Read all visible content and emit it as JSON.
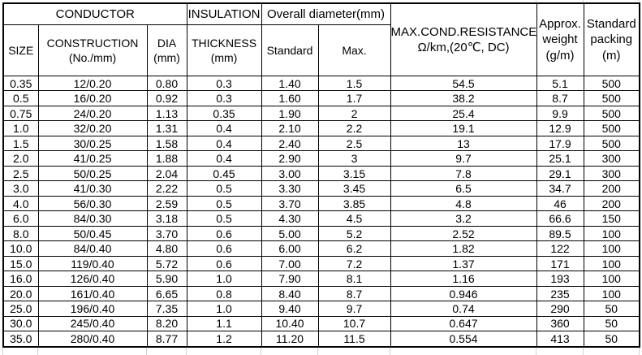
{
  "table": {
    "columns": [
      "size",
      "construction",
      "dia",
      "thickness",
      "overall-standard",
      "overall-max",
      "resistance",
      "weight",
      "packing"
    ],
    "header": {
      "group_conductor": "CONDUCTOR",
      "group_insulation": "INSULATION",
      "group_overall_diameter": "Overall diameter(mm)",
      "col_size": "SIZE",
      "col_construction": "CONSTRUCTION\n(No./mm)",
      "col_dia": "DIA\n(mm)",
      "col_thickness": "THICKNESS\n(mm)",
      "col_standard": "Standard",
      "col_max": "Max.",
      "col_resistance": "MAX.COND.RESISTANCE\nΩ/km,(20℃, DC)",
      "col_weight": "Approx.\nweight\n(g/m)",
      "col_packing": "Standard\npacking\n(m)"
    },
    "rows": [
      [
        "0.35",
        "12/0.20",
        "0.80",
        "0.3",
        "1.40",
        "1.5",
        "54.5",
        "5.1",
        "500"
      ],
      [
        "0.5",
        "16/0.20",
        "0.92",
        "0.3",
        "1.60",
        "1.7",
        "38.2",
        "8.7",
        "500"
      ],
      [
        "0.75",
        "24/0.20",
        "1.13",
        "0.35",
        "1.90",
        "2",
        "25.4",
        "9.9",
        "500"
      ],
      [
        "1.0",
        "32/0.20",
        "1.31",
        "0.4",
        "2.10",
        "2.2",
        "19.1",
        "12.9",
        "500"
      ],
      [
        "1.5",
        "30/0.25",
        "1.58",
        "0.4",
        "2.40",
        "2.5",
        "13",
        "17.9",
        "500"
      ],
      [
        "2.0",
        "41/0.25",
        "1.88",
        "0.4",
        "2.90",
        "3",
        "9.7",
        "25.1",
        "300"
      ],
      [
        "2.5",
        "50/0.25",
        "2.04",
        "0.45",
        "3.00",
        "3.15",
        "7.8",
        "29.1",
        "300"
      ],
      [
        "3.0",
        "41/0.30",
        "2.22",
        "0.5",
        "3.30",
        "3.45",
        "6.5",
        "34.7",
        "200"
      ],
      [
        "4.0",
        "56/0.30",
        "2.59",
        "0.5",
        "3.70",
        "3.85",
        "4.8",
        "46",
        "200"
      ],
      [
        "6.0",
        "84/0.30",
        "3.18",
        "0.5",
        "4.30",
        "4.5",
        "3.2",
        "66.6",
        "150"
      ],
      [
        "8.0",
        "50/0.45",
        "3.70",
        "0.6",
        "5.00",
        "5.2",
        "2.52",
        "89.5",
        "100"
      ],
      [
        "10.0",
        "84/0.40",
        "4.80",
        "0.6",
        "6.00",
        "6.2",
        "1.82",
        "122",
        "100"
      ],
      [
        "15.0",
        "119/0.40",
        "5.72",
        "0.6",
        "7.00",
        "7.2",
        "1.37",
        "171",
        "100"
      ],
      [
        "16.0",
        "126/0.40",
        "5.90",
        "1.0",
        "7.90",
        "8.1",
        "1.16",
        "193",
        "100"
      ],
      [
        "20.0",
        "161/0.40",
        "6.65",
        "0.8",
        "8.40",
        "8.7",
        "0.946",
        "235",
        "100"
      ],
      [
        "25.0",
        "196/0.40",
        "7.35",
        "1.0",
        "9.40",
        "9.7",
        "0.74",
        "290",
        "50"
      ],
      [
        "30.0",
        "245/0.40",
        "8.20",
        "1.1",
        "10.40",
        "10.7",
        "0.647",
        "360",
        "50"
      ],
      [
        "35.0",
        "280/0.40",
        "8.77",
        "1.2",
        "11.20",
        "11.5",
        "0.554",
        "413",
        "50"
      ]
    ]
  }
}
